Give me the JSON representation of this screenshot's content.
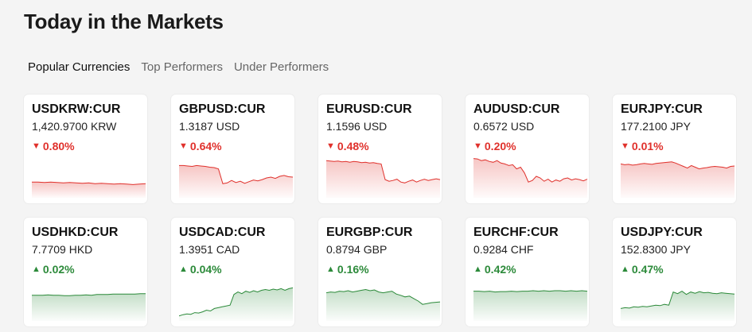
{
  "header": {
    "title": "Today in the Markets"
  },
  "tabs": [
    {
      "label": "Popular Currencies",
      "active": true
    },
    {
      "label": "Top Performers",
      "active": false
    },
    {
      "label": "Under Performers",
      "active": false
    }
  ],
  "colors": {
    "down": "#e0312c",
    "up": "#2c8a3a"
  },
  "cards": [
    {
      "symbol": "USDKRW:CUR",
      "price": "1,420.9700 KRW",
      "change": "0.80%",
      "direction": "down",
      "spark": [
        0.62,
        0.62,
        0.63,
        0.62,
        0.63,
        0.64,
        0.63,
        0.64,
        0.65,
        0.64,
        0.66,
        0.65,
        0.66,
        0.67,
        0.66,
        0.67,
        0.68,
        0.67,
        0.66
      ]
    },
    {
      "symbol": "GBPUSD:CUR",
      "price": "1.3187 USD",
      "change": "0.64%",
      "direction": "down",
      "spark": [
        0.22,
        0.22,
        0.23,
        0.24,
        0.22,
        0.23,
        0.24,
        0.26,
        0.27,
        0.3,
        0.66,
        0.64,
        0.58,
        0.63,
        0.6,
        0.65,
        0.61,
        0.57,
        0.59,
        0.56,
        0.52,
        0.5,
        0.53,
        0.48,
        0.46,
        0.49,
        0.5
      ]
    },
    {
      "symbol": "EURUSD:CUR",
      "price": "1.1596 USD",
      "change": "0.48%",
      "direction": "down",
      "spark": [
        0.1,
        0.11,
        0.12,
        0.11,
        0.13,
        0.12,
        0.14,
        0.12,
        0.13,
        0.15,
        0.14,
        0.16,
        0.15,
        0.17,
        0.18,
        0.56,
        0.6,
        0.58,
        0.55,
        0.62,
        0.64,
        0.6,
        0.57,
        0.62,
        0.58,
        0.55,
        0.58,
        0.56,
        0.54,
        0.56
      ]
    },
    {
      "symbol": "AUDUSD:CUR",
      "price": "0.6572 USD",
      "change": "0.20%",
      "direction": "down",
      "spark": [
        0.05,
        0.06,
        0.1,
        0.08,
        0.12,
        0.14,
        0.1,
        0.16,
        0.18,
        0.22,
        0.2,
        0.3,
        0.26,
        0.4,
        0.62,
        0.58,
        0.48,
        0.52,
        0.6,
        0.55,
        0.62,
        0.57,
        0.6,
        0.54,
        0.52,
        0.57,
        0.54,
        0.56,
        0.59,
        0.55
      ]
    },
    {
      "symbol": "EURJPY:CUR",
      "price": "177.2100 JPY",
      "change": "0.01%",
      "direction": "down",
      "spark": [
        0.18,
        0.2,
        0.19,
        0.21,
        0.2,
        0.18,
        0.17,
        0.18,
        0.19,
        0.17,
        0.16,
        0.15,
        0.14,
        0.13,
        0.16,
        0.2,
        0.24,
        0.28,
        0.22,
        0.26,
        0.3,
        0.28,
        0.27,
        0.25,
        0.24,
        0.25,
        0.26,
        0.28,
        0.24,
        0.23
      ]
    },
    {
      "symbol": "USDHKD:CUR",
      "price": "7.7709 HKD",
      "change": "0.02%",
      "direction": "up",
      "spark": [
        0.38,
        0.38,
        0.38,
        0.37,
        0.38,
        0.38,
        0.39,
        0.39,
        0.38,
        0.38,
        0.37,
        0.38,
        0.36,
        0.36,
        0.36,
        0.35,
        0.35,
        0.35,
        0.35,
        0.35,
        0.34,
        0.34
      ]
    },
    {
      "symbol": "USDCAD:CUR",
      "price": "1.3951 CAD",
      "change": "0.04%",
      "direction": "up",
      "spark": [
        0.88,
        0.85,
        0.83,
        0.84,
        0.8,
        0.81,
        0.78,
        0.74,
        0.76,
        0.7,
        0.68,
        0.66,
        0.64,
        0.62,
        0.36,
        0.3,
        0.34,
        0.28,
        0.31,
        0.27,
        0.3,
        0.26,
        0.24,
        0.26,
        0.23,
        0.25,
        0.22,
        0.26,
        0.22,
        0.2
      ]
    },
    {
      "symbol": "EURGBP:CUR",
      "price": "0.8794 GBP",
      "change": "0.16%",
      "direction": "up",
      "spark": [
        0.32,
        0.3,
        0.31,
        0.28,
        0.29,
        0.27,
        0.3,
        0.28,
        0.26,
        0.24,
        0.27,
        0.25,
        0.3,
        0.32,
        0.3,
        0.28,
        0.35,
        0.38,
        0.42,
        0.4,
        0.46,
        0.52,
        0.6,
        0.58,
        0.56,
        0.55,
        0.54
      ]
    },
    {
      "symbol": "EURCHF:CUR",
      "price": "0.9284 CHF",
      "change": "0.42%",
      "direction": "up",
      "spark": [
        0.28,
        0.28,
        0.29,
        0.28,
        0.3,
        0.29,
        0.29,
        0.28,
        0.29,
        0.28,
        0.28,
        0.27,
        0.28,
        0.27,
        0.28,
        0.27,
        0.27,
        0.28,
        0.27,
        0.28,
        0.27,
        0.28
      ]
    },
    {
      "symbol": "USDJPY:CUR",
      "price": "152.8300 JPY",
      "change": "0.47%",
      "direction": "up",
      "spark": [
        0.7,
        0.68,
        0.69,
        0.66,
        0.67,
        0.65,
        0.66,
        0.64,
        0.62,
        0.63,
        0.6,
        0.62,
        0.3,
        0.34,
        0.28,
        0.36,
        0.3,
        0.33,
        0.29,
        0.32,
        0.31,
        0.33,
        0.34,
        0.32,
        0.33,
        0.34,
        0.35
      ]
    }
  ]
}
